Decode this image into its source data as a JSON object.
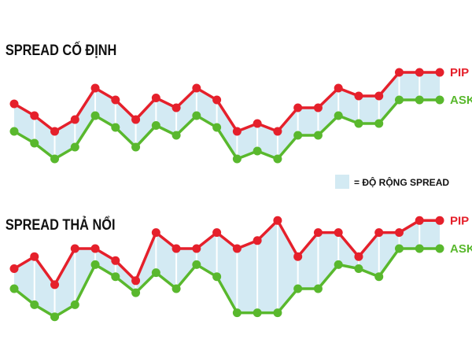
{
  "colors": {
    "pip": "#e5202b",
    "ask": "#59b82d",
    "spread_fill": "#d3eaf3",
    "separator": "#ffffff"
  },
  "legend": {
    "text": "= ĐỘ RỘNG SPREAD"
  },
  "chart_data": [
    {
      "type": "line",
      "title": "SPREAD CỐ ĐỊNH",
      "x": [
        0,
        1,
        2,
        3,
        4,
        5,
        6,
        7,
        8,
        9,
        10,
        11,
        12,
        13,
        14,
        15,
        16,
        17,
        18,
        19,
        20,
        21
      ],
      "series": [
        {
          "name": "PIP",
          "values": [
            18,
            12,
            4,
            10,
            26,
            20,
            10,
            21,
            16,
            26,
            20,
            4,
            8,
            4,
            16,
            16,
            26,
            22,
            22,
            34,
            34,
            34
          ]
        },
        {
          "name": "ASK",
          "values": [
            4,
            -2,
            -10,
            -4,
            12,
            6,
            -4,
            7,
            2,
            12,
            6,
            -10,
            -6,
            -10,
            2,
            2,
            12,
            8,
            8,
            20,
            20,
            20
          ]
        }
      ],
      "grid": false,
      "legend": "right"
    },
    {
      "type": "line",
      "title": "SPREAD THẢ NỔI",
      "x": [
        0,
        1,
        2,
        3,
        4,
        5,
        6,
        7,
        8,
        9,
        10,
        11,
        12,
        13,
        14,
        15,
        16,
        17,
        18,
        19,
        20,
        21
      ],
      "series": [
        {
          "name": "PIP",
          "values": [
            10,
            16,
            2,
            20,
            20,
            14,
            4,
            28,
            20,
            20,
            28,
            20,
            24,
            34,
            16,
            28,
            28,
            16,
            28,
            28,
            34,
            34
          ]
        },
        {
          "name": "ASK",
          "values": [
            0,
            -8,
            -14,
            -8,
            12,
            6,
            -2,
            8,
            0,
            12,
            6,
            -12,
            -12,
            -12,
            0,
            0,
            12,
            10,
            6,
            20,
            20,
            20
          ]
        }
      ],
      "grid": false,
      "legend": "right"
    }
  ]
}
